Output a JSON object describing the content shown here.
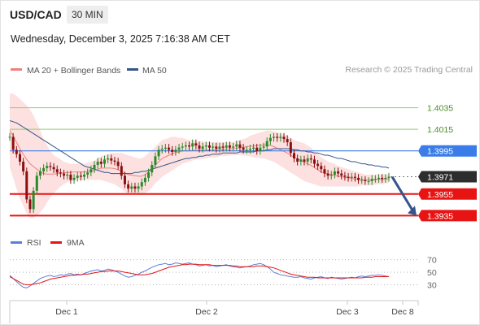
{
  "header": {
    "symbol": "USD/CAD",
    "timeframe": "30 MIN",
    "datetime": "Wednesday, December 3, 2025 7:16:38 AM CET",
    "credit": "Research © 2025 Trading Central"
  },
  "colors": {
    "bb": "#f08080",
    "bbFill": "#fde0e0",
    "ma50": "#34558b",
    "candleUp": "#2c8a2c",
    "candleDown": "#8a1010",
    "green": "#8ecf6c",
    "greenText": "#4a8c24",
    "blue": "#3b7de8",
    "red": "#e81414",
    "dark": "#2d2d2d",
    "rsi": "#5b7fd6",
    "rsiMa": "#e81414"
  },
  "chart_data": [
    {
      "type": "candlestick",
      "legend": [
        "MA 20 + Bollinger Bands",
        "MA 50"
      ],
      "x_labels": [
        "Dec 1",
        "Dec 2",
        "Dec 3",
        "Dec 8"
      ],
      "ylim": [
        1.393,
        1.4052
      ],
      "levels": [
        {
          "label": "1.4035",
          "value": 1.4035,
          "kind": "resistance"
        },
        {
          "label": "1.4015",
          "value": 1.4015,
          "kind": "resistance"
        },
        {
          "label": "1.3995",
          "value": 1.3995,
          "kind": "pivot"
        },
        {
          "label": "1.3971",
          "value": 1.3971,
          "kind": "last"
        },
        {
          "label": "1.3955",
          "value": 1.3955,
          "kind": "support"
        },
        {
          "label": "1.3935",
          "value": 1.3935,
          "kind": "support"
        }
      ],
      "close": [
        1.4008,
        1.3996,
        1.3992,
        1.3985,
        1.3976,
        1.395,
        1.3941,
        1.3958,
        1.3972,
        1.3976,
        1.3979,
        1.3981,
        1.398,
        1.3978,
        1.3975,
        1.3974,
        1.3972,
        1.3973,
        1.3968,
        1.397,
        1.3972,
        1.3971,
        1.3973,
        1.3975,
        1.3978,
        1.3982,
        1.3985,
        1.3983,
        1.3987,
        1.3988,
        1.3986,
        1.3985,
        1.3981,
        1.3972,
        1.3964,
        1.396,
        1.3962,
        1.396,
        1.3962,
        1.3966,
        1.397,
        1.3975,
        1.3982,
        1.399,
        1.3996,
        1.3997,
        1.3998,
        1.3996,
        1.3994,
        1.3996,
        1.3998,
        1.3999,
        1.4,
        1.3999,
        1.4002,
        1.4,
        1.3997,
        1.3999,
        1.4,
        1.3998,
        1.3999,
        1.3997,
        1.3999,
        1.3998,
        1.4,
        1.3998,
        1.3999,
        1.4001,
        1.3998,
        1.3996,
        1.3996,
        1.3997,
        1.3998,
        1.3995,
        1.3998,
        1.3999,
        1.4004,
        1.4007,
        1.4008,
        1.4007,
        1.4008,
        1.4006,
        1.4003,
        1.3993,
        1.3988,
        1.3985,
        1.3987,
        1.3985,
        1.3988,
        1.3987,
        1.3983,
        1.3981,
        1.3978,
        1.3974,
        1.3972,
        1.3973,
        1.3976,
        1.3974,
        1.3972,
        1.3971,
        1.397,
        1.3971,
        1.397,
        1.3968,
        1.3968,
        1.3967,
        1.3967,
        1.3969,
        1.3969,
        1.397,
        1.3969,
        1.397,
        1.3971
      ],
      "bb_upper": [
        1.4048,
        1.4048,
        1.4046,
        1.4043,
        1.404,
        1.4037,
        1.4033,
        1.4028,
        1.4021,
        1.4014,
        1.4006,
        1.4,
        1.3995,
        1.3991,
        1.3989,
        1.3987,
        1.3985,
        1.3984,
        1.3983,
        1.3983,
        1.3983,
        1.3983,
        1.3983,
        1.3984,
        1.3985,
        1.3986,
        1.3988,
        1.399,
        1.3991,
        1.3992,
        1.3993,
        1.3993,
        1.3993,
        1.3993,
        1.3992,
        1.3991,
        1.399,
        1.3989,
        1.3988,
        1.3988,
        1.399,
        1.3993,
        1.3996,
        1.3999,
        1.4002,
        1.4005,
        1.4006,
        1.4007,
        1.4008,
        1.4008,
        1.4007,
        1.4007,
        1.4006,
        1.4005,
        1.4005,
        1.4004,
        1.4004,
        1.4004,
        1.4003,
        1.4003,
        1.4003,
        1.4003,
        1.4003,
        1.4003,
        1.4003,
        1.4003,
        1.4003,
        1.4004,
        1.4005,
        1.4006,
        1.4007,
        1.4009,
        1.401,
        1.4011,
        1.4012,
        1.4013,
        1.4014,
        1.4014,
        1.4013,
        1.4012,
        1.4011,
        1.401,
        1.4009,
        1.4007,
        1.4005,
        1.4004,
        1.4003,
        1.4002,
        1.4,
        1.3998,
        1.3995,
        1.3992,
        1.3989,
        1.3987,
        1.3985,
        1.3984,
        1.3983,
        1.3981,
        1.398,
        1.3979,
        1.3978,
        1.3977,
        1.3976,
        1.3975,
        1.3974,
        1.3973,
        1.3973,
        1.3973,
        1.3973,
        1.3973,
        1.3973,
        1.3973,
        1.3973
      ],
      "bb_lower": [
        1.398,
        1.397,
        1.396,
        1.3951,
        1.3944,
        1.3937,
        1.3933,
        1.3933,
        1.3935,
        1.3938,
        1.3942,
        1.3947,
        1.3952,
        1.3956,
        1.3959,
        1.3962,
        1.3964,
        1.3966,
        1.3967,
        1.3968,
        1.3968,
        1.3968,
        1.3968,
        1.3968,
        1.3968,
        1.3968,
        1.3968,
        1.3968,
        1.3967,
        1.3966,
        1.3965,
        1.3964,
        1.3962,
        1.396,
        1.3957,
        1.3955,
        1.3955,
        1.3955,
        1.3955,
        1.3955,
        1.3956,
        1.3958,
        1.3961,
        1.3965,
        1.3968,
        1.3971,
        1.3973,
        1.3975,
        1.3977,
        1.3979,
        1.3981,
        1.3983,
        1.3984,
        1.3985,
        1.3986,
        1.3987,
        1.3987,
        1.3988,
        1.3988,
        1.3989,
        1.3989,
        1.3989,
        1.399,
        1.399,
        1.399,
        1.3991,
        1.3991,
        1.3991,
        1.3991,
        1.3991,
        1.399,
        1.399,
        1.3989,
        1.3989,
        1.3988,
        1.3988,
        1.3987,
        1.3986,
        1.3985,
        1.3983,
        1.3981,
        1.3979,
        1.3977,
        1.3975,
        1.3973,
        1.3971,
        1.3969,
        1.3967,
        1.3966,
        1.3965,
        1.3964,
        1.3963,
        1.3962,
        1.3962,
        1.3962,
        1.3962,
        1.3962,
        1.3962,
        1.3962,
        1.3962,
        1.3962,
        1.3962,
        1.3962,
        1.3962,
        1.3963,
        1.3963,
        1.3963,
        1.3963,
        1.3964,
        1.3964,
        1.3964,
        1.3965,
        1.3965
      ],
      "ma50": [
        1.4023,
        1.4022,
        1.4021,
        1.4019,
        1.4017,
        1.4015,
        1.4013,
        1.4011,
        1.4009,
        1.4007,
        1.4005,
        1.4003,
        1.4001,
        1.3999,
        1.3997,
        1.3995,
        1.3993,
        1.3991,
        1.3989,
        1.3987,
        1.3985,
        1.3983,
        1.3981,
        1.398,
        1.3979,
        1.3978,
        1.3977,
        1.3976,
        1.3975,
        1.3975,
        1.3974,
        1.3974,
        1.3974,
        1.3974,
        1.3974,
        1.3974,
        1.3974,
        1.3975,
        1.3975,
        1.3976,
        1.3976,
        1.3977,
        1.3978,
        1.3979,
        1.398,
        1.3981,
        1.3982,
        1.3983,
        1.3984,
        1.3985,
        1.3986,
        1.3987,
        1.3988,
        1.3988,
        1.3989,
        1.3989,
        1.399,
        1.399,
        1.3991,
        1.3991,
        1.3992,
        1.3992,
        1.3992,
        1.3993,
        1.3993,
        1.3993,
        1.3993,
        1.3993,
        1.3994,
        1.3994,
        1.3994,
        1.3994,
        1.3994,
        1.3995,
        1.3995,
        1.3995,
        1.3996,
        1.3996,
        1.3997,
        1.3997,
        1.3997,
        1.3997,
        1.3997,
        1.3997,
        1.3996,
        1.3996,
        1.3995,
        1.3995,
        1.3994,
        1.3994,
        1.3993,
        1.3993,
        1.3992,
        1.3991,
        1.3991,
        1.399,
        1.3989,
        1.3988,
        1.3988,
        1.3987,
        1.3986,
        1.3985,
        1.3985,
        1.3984,
        1.3983,
        1.3983,
        1.3982,
        1.3982,
        1.3981,
        1.3981,
        1.398,
        1.398,
        1.3979
      ]
    },
    {
      "type": "line",
      "legend": [
        "RSI",
        "9MA"
      ],
      "ylim": [
        15,
        80
      ],
      "yticks": [
        70,
        50,
        30
      ],
      "series": [
        {
          "name": "RSI",
          "values": [
            45,
            40,
            35,
            30,
            26,
            25,
            28,
            32,
            36,
            40,
            42,
            44,
            45,
            43,
            44,
            46,
            45,
            47,
            48,
            46,
            47,
            46,
            48,
            50,
            52,
            53,
            54,
            52,
            53,
            55,
            54,
            52,
            50,
            47,
            44,
            42,
            43,
            45,
            47,
            50,
            52,
            55,
            58,
            60,
            62,
            63,
            64,
            62,
            63,
            65,
            64,
            63,
            64,
            65,
            63,
            62,
            60,
            61,
            62,
            60,
            61,
            59,
            60,
            61,
            62,
            60,
            59,
            58,
            57,
            58,
            59,
            60,
            62,
            63,
            64,
            62,
            59,
            55,
            50,
            48,
            46,
            45,
            44,
            43,
            42,
            42,
            43,
            41,
            40,
            39,
            41,
            42,
            43,
            41,
            40,
            42,
            41,
            40,
            39,
            40,
            41,
            42,
            41,
            43,
            44,
            43,
            44,
            45,
            45,
            46,
            45,
            44,
            43
          ]
        },
        {
          "name": "9MA",
          "values": [
            43,
            40,
            37,
            34,
            31,
            30,
            30,
            31,
            32,
            33,
            35,
            37,
            39,
            40,
            41,
            42,
            43,
            44,
            45,
            45,
            46,
            46,
            47,
            47,
            48,
            49,
            50,
            51,
            51,
            52,
            52,
            52,
            52,
            51,
            50,
            49,
            48,
            47,
            46,
            46,
            46,
            47,
            48,
            50,
            52,
            54,
            56,
            58,
            59,
            60,
            61,
            62,
            62,
            63,
            63,
            63,
            62,
            62,
            62,
            62,
            61,
            61,
            61,
            61,
            61,
            61,
            60,
            60,
            59,
            59,
            59,
            59,
            59,
            60,
            60,
            60,
            59,
            58,
            57,
            55,
            53,
            51,
            49,
            47,
            46,
            45,
            44,
            43,
            42,
            42,
            42,
            41,
            41,
            41,
            41,
            41,
            41,
            41,
            41,
            41,
            41,
            41,
            41,
            41,
            41,
            42,
            42,
            42,
            43,
            43,
            43,
            43,
            43
          ]
        }
      ]
    }
  ]
}
